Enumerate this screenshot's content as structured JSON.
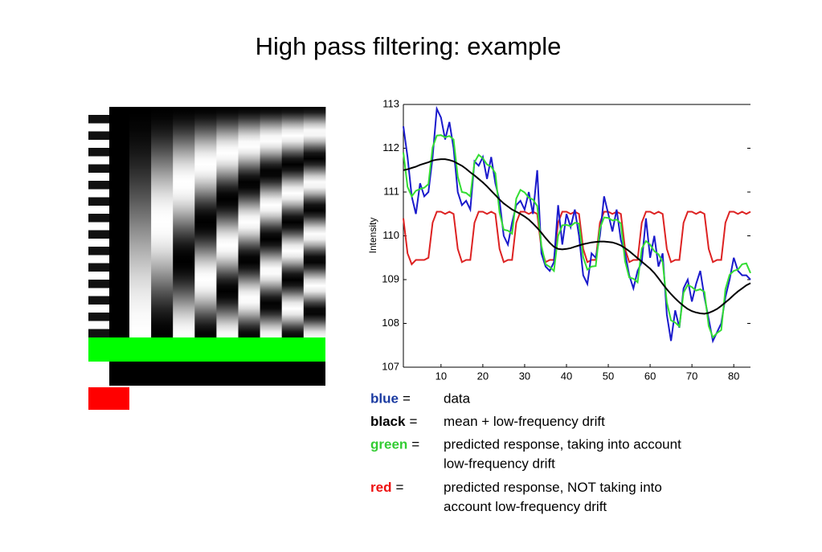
{
  "title": "High pass filtering: example",
  "legend": [
    {
      "key": "blue",
      "eq": "=",
      "lines": [
        "data"
      ]
    },
    {
      "key": "black",
      "eq": "=",
      "lines": [
        "mean + low-frequency drift"
      ]
    },
    {
      "key": "green",
      "eq": "=",
      "lines": [
        "predicted response, taking into account",
        "low-frequency drift"
      ]
    },
    {
      "key": "red",
      "eq": "=",
      "lines": [
        "predicted response, NOT taking into",
        "account low-frequency drift"
      ]
    }
  ],
  "chart_data": {
    "type": "line",
    "ylabel": "Intensity",
    "xlim": [
      1,
      84
    ],
    "ylim": [
      107,
      113
    ],
    "xticks": [
      10,
      20,
      30,
      40,
      50,
      60,
      70,
      80
    ],
    "yticks": [
      107,
      108,
      109,
      110,
      111,
      112,
      113
    ],
    "x": [
      1,
      2,
      3,
      4,
      5,
      6,
      7,
      8,
      9,
      10,
      11,
      12,
      13,
      14,
      15,
      16,
      17,
      18,
      19,
      20,
      21,
      22,
      23,
      24,
      25,
      26,
      27,
      28,
      29,
      30,
      31,
      32,
      33,
      34,
      35,
      36,
      37,
      38,
      39,
      40,
      41,
      42,
      43,
      44,
      45,
      46,
      47,
      48,
      49,
      50,
      51,
      52,
      53,
      54,
      55,
      56,
      57,
      58,
      59,
      60,
      61,
      62,
      63,
      64,
      65,
      66,
      67,
      68,
      69,
      70,
      71,
      72,
      73,
      74,
      75,
      76,
      77,
      78,
      79,
      80,
      81,
      82,
      83,
      84
    ],
    "series": [
      {
        "color": "#dd2222",
        "values": [
          110.4,
          109.6,
          109.35,
          109.45,
          109.45,
          109.45,
          109.5,
          110.3,
          110.55,
          110.55,
          110.5,
          110.55,
          110.5,
          109.7,
          109.4,
          109.45,
          109.45,
          110.3,
          110.55,
          110.55,
          110.5,
          110.55,
          110.5,
          109.7,
          109.4,
          109.45,
          109.45,
          110.3,
          110.55,
          110.55,
          110.5,
          110.55,
          110.5,
          109.7,
          109.4,
          109.45,
          109.45,
          110.3,
          110.55,
          110.55,
          110.5,
          110.55,
          110.5,
          109.7,
          109.4,
          109.45,
          109.45,
          110.3,
          110.55,
          110.55,
          110.5,
          110.55,
          110.5,
          109.7,
          109.4,
          109.45,
          109.45,
          110.3,
          110.55,
          110.55,
          110.5,
          110.55,
          110.5,
          109.7,
          109.4,
          109.45,
          109.45,
          110.3,
          110.55,
          110.55,
          110.5,
          110.55,
          110.5,
          109.7,
          109.4,
          109.45,
          109.45,
          110.3,
          110.55,
          110.55,
          110.5,
          110.55,
          110.5,
          110.55
        ]
      },
      {
        "color": "#1a1acc",
        "values": [
          112.5,
          111.8,
          110.9,
          110.5,
          111.2,
          110.9,
          111.0,
          111.8,
          112.9,
          112.7,
          112.2,
          112.6,
          112.0,
          111.0,
          110.7,
          110.8,
          110.6,
          111.7,
          111.6,
          111.8,
          111.3,
          111.8,
          111.2,
          110.8,
          110.0,
          109.8,
          110.3,
          110.7,
          110.8,
          110.6,
          111.0,
          110.5,
          111.5,
          109.6,
          109.3,
          109.2,
          109.4,
          110.7,
          109.8,
          110.5,
          110.2,
          110.6,
          110.0,
          109.1,
          108.9,
          109.6,
          109.5,
          110.0,
          110.9,
          110.5,
          110.1,
          110.6,
          109.9,
          109.6,
          109.1,
          108.8,
          109.2,
          109.4,
          110.4,
          109.5,
          110.0,
          109.3,
          109.6,
          108.2,
          107.6,
          108.3,
          107.9,
          108.8,
          109.0,
          108.5,
          108.9,
          109.2,
          108.6,
          108.1,
          107.6,
          107.8,
          108.0,
          108.6,
          109.0,
          109.5,
          109.2,
          109.1,
          109.1,
          109.0
        ]
      },
      {
        "color": "#33dd33",
        "values": [
          111.9,
          111.12,
          110.9,
          111.03,
          111.07,
          111.1,
          111.18,
          112.02,
          112.29,
          112.3,
          112.25,
          112.28,
          112.2,
          111.35,
          111.0,
          110.98,
          110.9,
          111.68,
          111.85,
          111.77,
          111.63,
          111.58,
          111.43,
          110.53,
          110.14,
          110.12,
          110.05,
          110.85,
          111.05,
          110.99,
          110.87,
          110.83,
          110.68,
          109.77,
          109.35,
          109.29,
          109.2,
          110.0,
          110.24,
          110.25,
          110.22,
          110.3,
          110.28,
          109.51,
          109.23,
          109.3,
          109.31,
          110.17,
          110.42,
          110.41,
          110.35,
          110.37,
          110.28,
          109.42,
          109.05,
          109.02,
          108.94,
          109.71,
          109.88,
          109.8,
          109.65,
          109.58,
          109.4,
          108.48,
          108.07,
          108.02,
          107.93,
          108.7,
          108.88,
          108.83,
          108.75,
          108.78,
          108.72,
          107.94,
          107.68,
          107.78,
          107.85,
          108.78,
          109.11,
          109.2,
          109.23,
          109.35,
          109.37,
          109.15
        ]
      },
      {
        "color": "#000000",
        "values": [
          111.5,
          111.52,
          111.55,
          111.58,
          111.62,
          111.65,
          111.68,
          111.72,
          111.74,
          111.75,
          111.75,
          111.73,
          111.7,
          111.65,
          111.6,
          111.53,
          111.45,
          111.38,
          111.3,
          111.22,
          111.13,
          111.03,
          110.93,
          110.83,
          110.74,
          110.67,
          110.6,
          110.55,
          110.5,
          110.44,
          110.37,
          110.28,
          110.18,
          110.07,
          109.95,
          109.84,
          109.75,
          109.7,
          109.69,
          109.7,
          109.72,
          109.75,
          109.78,
          109.81,
          109.83,
          109.85,
          109.86,
          109.87,
          109.87,
          109.86,
          109.85,
          109.82,
          109.78,
          109.72,
          109.65,
          109.57,
          109.49,
          109.41,
          109.33,
          109.25,
          109.15,
          109.03,
          108.9,
          108.78,
          108.67,
          108.57,
          108.48,
          108.4,
          108.33,
          108.28,
          108.25,
          108.23,
          108.22,
          108.24,
          108.28,
          108.33,
          108.4,
          108.48,
          108.56,
          108.65,
          108.73,
          108.8,
          108.87,
          108.92
        ]
      }
    ]
  }
}
